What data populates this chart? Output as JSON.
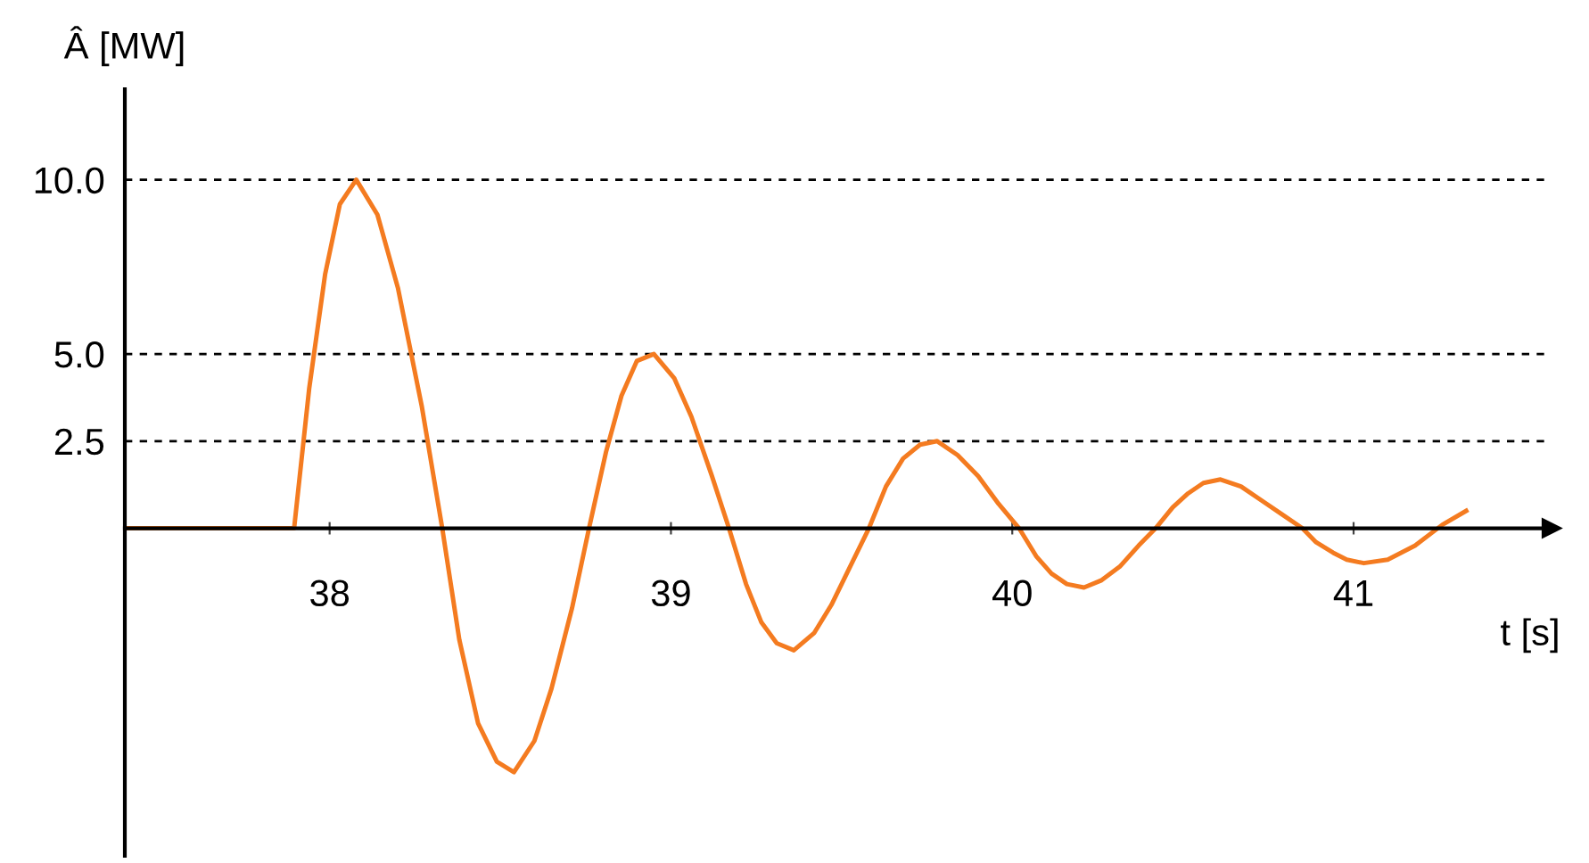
{
  "chart_data": {
    "type": "line",
    "xlabel": "t [s]",
    "ylabel": "Â [MW]",
    "x": [
      37.4,
      37.896,
      37.94,
      37.987,
      38.03,
      38.078,
      38.14,
      38.2,
      38.27,
      38.33,
      38.38,
      38.435,
      38.49,
      38.54,
      38.6,
      38.65,
      38.71,
      38.76,
      38.81,
      38.855,
      38.9,
      38.95,
      39.01,
      39.06,
      39.12,
      39.17,
      39.22,
      39.265,
      39.31,
      39.36,
      39.42,
      39.47,
      39.53,
      39.58,
      39.63,
      39.68,
      39.73,
      39.78,
      39.84,
      39.9,
      39.96,
      40.02,
      40.07,
      40.115,
      40.16,
      40.21,
      40.26,
      40.315,
      40.37,
      40.42,
      40.47,
      40.515,
      40.56,
      40.61,
      40.67,
      40.73,
      40.79,
      40.85,
      40.89,
      40.94,
      40.98,
      41.03,
      41.1,
      41.18,
      41.26,
      41.33
    ],
    "series": [
      {
        "color": "#f47b20",
        "values": [
          0,
          0,
          4.0,
          7.3,
          9.3,
          10,
          9.0,
          6.9,
          3.5,
          0,
          -3.2,
          -5.6,
          -6.7,
          -7.0,
          -6.1,
          -4.6,
          -2.3,
          0,
          2.2,
          3.8,
          4.8,
          5,
          4.3,
          3.2,
          1.5,
          0,
          -1.6,
          -2.7,
          -3.3,
          -3.5,
          -3.0,
          -2.2,
          -1.0,
          0,
          1.2,
          2.0,
          2.4,
          2.5,
          2.1,
          1.5,
          0.7,
          0,
          -0.8,
          -1.3,
          -1.6,
          -1.7,
          -1.5,
          -1.1,
          -0.5,
          0,
          0.6,
          1.0,
          1.3,
          1.4,
          1.2,
          0.8,
          0.4,
          0,
          -0.4,
          -0.7,
          -0.9,
          -1.0,
          -0.9,
          -0.5,
          0.1,
          0.5
        ]
      }
    ],
    "xlim": [
      37.4,
      41.58
    ],
    "ylim": [
      -9.4,
      12.6
    ],
    "xticks": [
      38,
      39,
      40,
      41
    ],
    "yticks": [
      2.5,
      {
        "value": 5,
        "label": "5.0"
      },
      {
        "value": 10,
        "label": "10.0"
      }
    ],
    "grid": "y",
    "marker": "none",
    "line_style": "solid",
    "legend": false
  }
}
